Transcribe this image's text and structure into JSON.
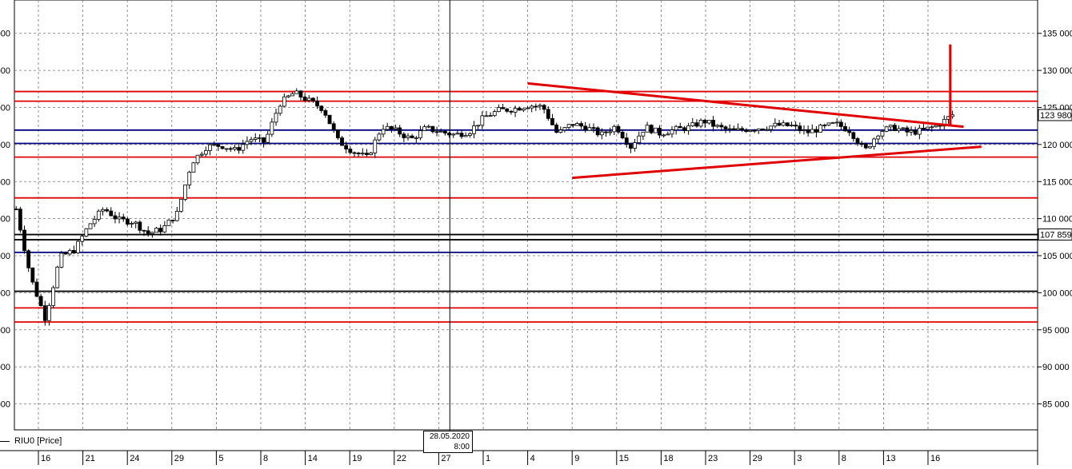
{
  "chart_data": {
    "type": "candlestick",
    "symbol_label": "RIU0 [Price]",
    "ylim": [
      81500,
      139500
    ],
    "y_ticks": [
      85000,
      90000,
      95000,
      100000,
      105000,
      110000,
      115000,
      120000,
      125000,
      130000,
      135000
    ],
    "y_tick_labels": [
      "85 000",
      "90 000",
      "95 000",
      "100 000",
      "105 000",
      "110 000",
      "115 000",
      "120 000",
      "125 000",
      "130 000",
      "135 000"
    ],
    "left_tick_labels": [
      "000",
      "000",
      "000",
      "000",
      "000",
      "000",
      "000",
      "000",
      "000",
      "000",
      "000"
    ],
    "x_tick_labels": [
      "16",
      "21",
      "24",
      "29",
      "5",
      "8",
      "14",
      "19",
      "22",
      "27",
      "1",
      "4",
      "9",
      "15",
      "18",
      "23",
      "29",
      "3",
      "8",
      "13",
      "16"
    ],
    "cursor_label": [
      "28.05.2020",
      "8:00"
    ],
    "price_badges": [
      {
        "value": 123980,
        "label": "123 980"
      },
      {
        "value": 107859,
        "label": "107 859"
      }
    ],
    "horizontal_levels": [
      {
        "value": 127150,
        "color": "#e00000"
      },
      {
        "value": 125850,
        "color": "#e00000"
      },
      {
        "value": 121950,
        "color": "#000080"
      },
      {
        "value": 120150,
        "color": "#000080"
      },
      {
        "value": 118300,
        "color": "#e00000"
      },
      {
        "value": 112800,
        "color": "#e00000"
      },
      {
        "value": 107850,
        "color": "#000000"
      },
      {
        "value": 107150,
        "color": "#000000"
      },
      {
        "value": 105450,
        "color": "#000080"
      },
      {
        "value": 100200,
        "color": "#000000"
      },
      {
        "value": 97950,
        "color": "#e00000"
      },
      {
        "value": 96050,
        "color": "#e00000"
      }
    ],
    "trend_lines": [
      {
        "from_tick": 11,
        "from_value": 128250,
        "to_tick": 20.8,
        "to_value": 122400,
        "color": "#e00000"
      },
      {
        "from_tick": 12,
        "from_value": 115500,
        "to_tick": 21.2,
        "to_value": 119700,
        "color": "#e00000"
      },
      {
        "from_tick": 20.5,
        "from_value": 122600,
        "to_tick": 20.5,
        "to_value": 133500,
        "color": "#e00000"
      }
    ],
    "anchors": [
      [
        0,
        111300
      ],
      [
        1,
        102000
      ],
      [
        2,
        96500
      ],
      [
        3,
        104800
      ],
      [
        4,
        105800
      ],
      [
        5,
        109200
      ],
      [
        6,
        111400
      ],
      [
        7,
        109800
      ],
      [
        8,
        109600
      ],
      [
        9,
        108000
      ],
      [
        10,
        108600
      ],
      [
        11,
        110700
      ],
      [
        12,
        117600
      ],
      [
        13,
        119700
      ],
      [
        14,
        119900
      ],
      [
        15,
        119200
      ],
      [
        16,
        120800
      ],
      [
        17,
        120300
      ],
      [
        18,
        125500
      ],
      [
        19,
        127000
      ],
      [
        20,
        125900
      ],
      [
        21,
        124800
      ],
      [
        22,
        120500
      ],
      [
        23,
        119100
      ],
      [
        24,
        118200
      ],
      [
        25,
        122400
      ],
      [
        26,
        121800
      ],
      [
        27,
        120700
      ],
      [
        28,
        122200
      ],
      [
        29,
        121700
      ],
      [
        30,
        121300
      ],
      [
        31,
        121800
      ],
      [
        32,
        123700
      ],
      [
        33,
        124600
      ],
      [
        34,
        124800
      ],
      [
        35,
        125300
      ],
      [
        36,
        125100
      ],
      [
        37,
        121400
      ],
      [
        38,
        122800
      ],
      [
        39,
        122300
      ],
      [
        40,
        121300
      ],
      [
        41,
        122500
      ],
      [
        42,
        119700
      ],
      [
        43,
        122400
      ],
      [
        44,
        121500
      ],
      [
        45,
        122000
      ],
      [
        46,
        122300
      ],
      [
        47,
        123200
      ],
      [
        48,
        122300
      ],
      [
        49,
        121800
      ],
      [
        50,
        122100
      ],
      [
        51,
        122300
      ],
      [
        52,
        122600
      ],
      [
        53,
        122500
      ],
      [
        54,
        121600
      ],
      [
        55,
        122200
      ],
      [
        56,
        122800
      ],
      [
        57,
        121900
      ],
      [
        58,
        119100
      ],
      [
        59,
        121800
      ],
      [
        60,
        122300
      ],
      [
        61,
        121600
      ],
      [
        62,
        121900
      ],
      [
        63,
        122600
      ],
      [
        64,
        124000
      ]
    ],
    "grid": true
  }
}
